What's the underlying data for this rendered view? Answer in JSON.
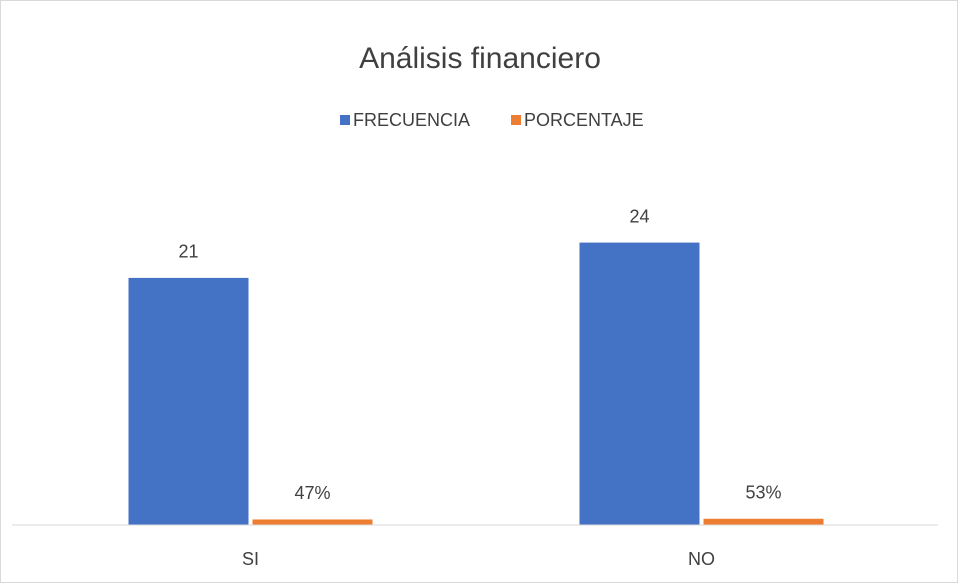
{
  "chart_data": {
    "type": "bar",
    "title": "Análisis financiero",
    "categories": [
      "SI",
      "NO"
    ],
    "series": [
      {
        "name": "FRECUENCIA",
        "color": "#4472c4",
        "values": [
          21,
          24
        ]
      },
      {
        "name": "PORCENTAJE",
        "color": "#ed7d31",
        "values": [
          0.47,
          0.53
        ],
        "value_labels": [
          "47%",
          "53%"
        ]
      }
    ],
    "ylim": [
      0,
      30
    ]
  }
}
